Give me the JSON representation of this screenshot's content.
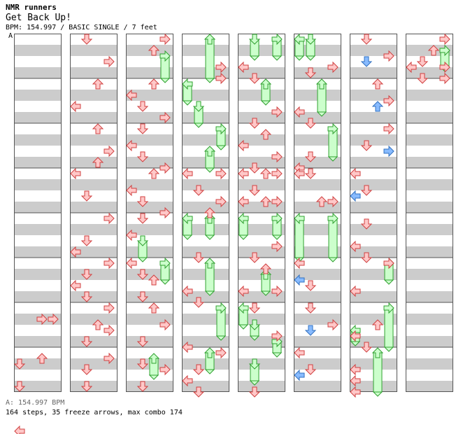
{
  "header": {
    "artist": "NMR runners",
    "title": "Get Back Up!",
    "info": "BPM: 154.997 / BASIC SINGLE / 7 feet",
    "bpm_marker": "A"
  },
  "footer": {
    "bpm_note": "A: 154.997 BPM",
    "stats": "164 steps, 35 freeze arrows, max combo 174"
  },
  "colors": {
    "stripe": "#cccccc",
    "border": "#555555",
    "arrow_fill": "#ffc8c8",
    "arrow_stroke": "#d04040",
    "alt_arrow_fill": "#88bbff",
    "alt_arrow_stroke": "#3070c0",
    "freeze_fill": "#ccffcc",
    "freeze_stroke": "#30a030"
  },
  "chart": {
    "lanes": [
      "left",
      "down",
      "up",
      "right"
    ],
    "columns": [
      {
        "arrows": [
          [
            6,
            2,
            0.5,
            "r"
          ],
          [
            7,
            0,
            0.5,
            "d"
          ],
          [
            6,
            3,
            0.5,
            "r"
          ],
          [
            7,
            2,
            0.25,
            "u"
          ],
          [
            7,
            0,
            1.5,
            "d"
          ],
          [
            7,
            0,
            3.5,
            "l"
          ]
        ],
        "freezes": []
      },
      {
        "arrows": [
          [
            0,
            1,
            0.0,
            "d"
          ],
          [
            0,
            3,
            1.0,
            "r"
          ],
          [
            1,
            2,
            0.0,
            "u"
          ],
          [
            1,
            0,
            1.0,
            "l"
          ],
          [
            2,
            2,
            0.0,
            "u"
          ],
          [
            2,
            3,
            1.0,
            "r"
          ],
          [
            2,
            2,
            1.5,
            "u"
          ],
          [
            3,
            0,
            0.0,
            "l"
          ],
          [
            3,
            1,
            1.0,
            "d"
          ],
          [
            4,
            3,
            0.0,
            "r"
          ],
          [
            4,
            1,
            1.0,
            "d"
          ],
          [
            4,
            0,
            1.5,
            "l"
          ],
          [
            5,
            3,
            0.0,
            "r"
          ],
          [
            5,
            1,
            0.5,
            "d"
          ],
          [
            5,
            0,
            1.0,
            "l"
          ],
          [
            5,
            1,
            1.5,
            "d"
          ],
          [
            6,
            3,
            0.0,
            "r"
          ],
          [
            6,
            2,
            0.75,
            "u"
          ],
          [
            6,
            3,
            1.0,
            "r"
          ],
          [
            6,
            1,
            1.5,
            "d"
          ],
          [
            7,
            3,
            0.25,
            "r"
          ],
          [
            7,
            1,
            0.75,
            "d"
          ],
          [
            7,
            1,
            1.5,
            "d"
          ]
        ],
        "freezes": []
      },
      {
        "arrows": [
          [
            0,
            3,
            0.0,
            "r"
          ],
          [
            0,
            2,
            0.5,
            "u"
          ],
          [
            1,
            2,
            0.0,
            "u"
          ],
          [
            1,
            0,
            0.5,
            "l"
          ],
          [
            1,
            1,
            1.0,
            "d"
          ],
          [
            1,
            3,
            1.5,
            "r"
          ],
          [
            2,
            1,
            0.0,
            "d"
          ],
          [
            2,
            0,
            0.75,
            "l"
          ],
          [
            2,
            1,
            1.25,
            "d"
          ],
          [
            2,
            3,
            1.75,
            "r"
          ],
          [
            3,
            2,
            0.0,
            "u"
          ],
          [
            3,
            0,
            0.75,
            "l"
          ],
          [
            3,
            1,
            1.25,
            "d"
          ],
          [
            3,
            3,
            1.75,
            "r"
          ],
          [
            4,
            1,
            0.0,
            "d"
          ],
          [
            4,
            0,
            0.75,
            "l"
          ],
          [
            5,
            0,
            0.0,
            "l"
          ],
          [
            5,
            1,
            0.5,
            "d"
          ],
          [
            5,
            2,
            0.75,
            "u"
          ],
          [
            5,
            1,
            1.5,
            "d"
          ],
          [
            6,
            2,
            0.0,
            "u"
          ],
          [
            6,
            3,
            0.75,
            "r"
          ],
          [
            6,
            1,
            1.5,
            "d"
          ],
          [
            7,
            1,
            0.5,
            "d"
          ],
          [
            7,
            3,
            0.75,
            "r"
          ],
          [
            7,
            1,
            1.5,
            "d"
          ]
        ],
        "freezes": [
          [
            0,
            3,
            0.75,
            1.75
          ],
          [
            4,
            1,
            1.0,
            1.75
          ],
          [
            5,
            3,
            0.0,
            0.75
          ],
          [
            7,
            2,
            0.25,
            1.0
          ]
        ]
      },
      {
        "arrows": [
          [
            0,
            3,
            1.25,
            "r"
          ],
          [
            0,
            3,
            1.75,
            "r"
          ],
          [
            3,
            0,
            0.0,
            "l"
          ],
          [
            3,
            1,
            0.75,
            "d"
          ],
          [
            3,
            3,
            0.0,
            "r"
          ],
          [
            3,
            3,
            1.25,
            "r"
          ],
          [
            3,
            2,
            1.75,
            "u"
          ],
          [
            4,
            1,
            1.75,
            "d"
          ],
          [
            5,
            0,
            1.25,
            "l"
          ],
          [
            5,
            1,
            1.75,
            "d"
          ],
          [
            6,
            0,
            1.75,
            "l"
          ],
          [
            7,
            3,
            0.0,
            "r"
          ],
          [
            7,
            1,
            0.75,
            "d"
          ],
          [
            7,
            0,
            1.25,
            "l"
          ],
          [
            7,
            1,
            1.75,
            "d"
          ]
        ],
        "freezes": [
          [
            0,
            2,
            0.0,
            1.75
          ],
          [
            1,
            0,
            0.0,
            0.75
          ],
          [
            1,
            1,
            1.0,
            1.75
          ],
          [
            2,
            3,
            0.0,
            0.75
          ],
          [
            2,
            2,
            1.0,
            1.75
          ],
          [
            4,
            0,
            0.0,
            0.75
          ],
          [
            4,
            2,
            0.0,
            0.75
          ],
          [
            5,
            2,
            0.0,
            1.25
          ],
          [
            6,
            3,
            0.0,
            1.25
          ],
          [
            7,
            2,
            0.0,
            0.75
          ]
        ]
      },
      {
        "arrows": [
          [
            0,
            0,
            1.25,
            "l"
          ],
          [
            0,
            1,
            1.75,
            "d"
          ],
          [
            1,
            3,
            1.25,
            "r"
          ],
          [
            1,
            1,
            1.75,
            "d"
          ],
          [
            2,
            2,
            0.25,
            "u"
          ],
          [
            2,
            0,
            0.75,
            "l"
          ],
          [
            2,
            3,
            1.25,
            "r"
          ],
          [
            2,
            1,
            1.75,
            "d"
          ],
          [
            3,
            0,
            0.0,
            "l"
          ],
          [
            3,
            2,
            0.0,
            "u"
          ],
          [
            3,
            3,
            0.0,
            "r"
          ],
          [
            3,
            1,
            0.75,
            "d"
          ],
          [
            3,
            0,
            1.25,
            "l"
          ],
          [
            3,
            2,
            1.25,
            "u"
          ],
          [
            3,
            3,
            1.25,
            "r"
          ],
          [
            4,
            3,
            1.25,
            "r"
          ],
          [
            4,
            1,
            1.75,
            "d"
          ],
          [
            5,
            2,
            0.25,
            "u"
          ],
          [
            5,
            0,
            1.25,
            "l"
          ],
          [
            5,
            3,
            1.25,
            "r"
          ],
          [
            6,
            1,
            0.0,
            "d"
          ],
          [
            6,
            3,
            1.25,
            "r"
          ],
          [
            7,
            1,
            1.75,
            "d"
          ]
        ],
        "freezes": [
          [
            0,
            1,
            0.0,
            0.75
          ],
          [
            0,
            3,
            0.0,
            0.75
          ],
          [
            1,
            2,
            0.0,
            0.75
          ],
          [
            4,
            0,
            0.0,
            0.75
          ],
          [
            4,
            3,
            0.0,
            0.75
          ],
          [
            5,
            2,
            0.5,
            1.25
          ],
          [
            6,
            0,
            0.0,
            0.75
          ],
          [
            6,
            1,
            0.75,
            1.25
          ],
          [
            6,
            3,
            1.5,
            2.0
          ],
          [
            7,
            1,
            0.5,
            1.25
          ]
        ]
      },
      {
        "arrows": [
          [
            0,
            1,
            1.5,
            "d"
          ],
          [
            0,
            3,
            1.25,
            "r"
          ],
          [
            1,
            0,
            1.25,
            "l"
          ],
          [
            1,
            1,
            1.75,
            "d"
          ],
          [
            2,
            1,
            1.25,
            "d"
          ],
          [
            2,
            0,
            1.75,
            "l"
          ],
          [
            3,
            0,
            0.0,
            "l"
          ],
          [
            3,
            1,
            0.0,
            "d"
          ],
          [
            3,
            2,
            1.25,
            "u"
          ],
          [
            3,
            3,
            1.25,
            "r"
          ],
          [
            5,
            0,
            0.0,
            "l"
          ],
          [
            5,
            0,
            0.75,
            "lb"
          ],
          [
            5,
            1,
            1.0,
            "d"
          ],
          [
            6,
            1,
            0.0,
            "d"
          ],
          [
            6,
            3,
            0.75,
            "r"
          ],
          [
            6,
            1,
            1.0,
            "db"
          ],
          [
            7,
            0,
            0.0,
            "l"
          ],
          [
            7,
            1,
            0.75,
            "d"
          ],
          [
            7,
            0,
            1.0,
            "lb"
          ]
        ],
        "freezes": [
          [
            0,
            0,
            0.0,
            0.75
          ],
          [
            0,
            1,
            0.0,
            0.75
          ],
          [
            1,
            2,
            0.0,
            1.25
          ],
          [
            2,
            3,
            0.0,
            1.25
          ],
          [
            4,
            0,
            0.0,
            1.75
          ],
          [
            4,
            3,
            0.0,
            1.75
          ]
        ]
      },
      {
        "arrows": [
          [
            0,
            1,
            0.0,
            "d"
          ],
          [
            0,
            3,
            0.75,
            "r"
          ],
          [
            0,
            1,
            1.0,
            "db"
          ],
          [
            1,
            2,
            0.0,
            "u"
          ],
          [
            1,
            3,
            0.75,
            "r"
          ],
          [
            1,
            2,
            1.0,
            "ub"
          ],
          [
            2,
            3,
            0.0,
            "r"
          ],
          [
            2,
            1,
            0.75,
            "d"
          ],
          [
            2,
            3,
            1.0,
            "rb"
          ],
          [
            3,
            0,
            0.0,
            "l"
          ],
          [
            3,
            1,
            0.75,
            "d"
          ],
          [
            3,
            0,
            1.0,
            "lb"
          ],
          [
            4,
            1,
            0.25,
            "d"
          ],
          [
            4,
            0,
            1.25,
            "l"
          ],
          [
            4,
            1,
            1.75,
            "d"
          ],
          [
            5,
            3,
            0.0,
            "r"
          ],
          [
            5,
            0,
            1.25,
            "l"
          ],
          [
            6,
            2,
            0.75,
            "u"
          ],
          [
            6,
            0,
            1.25,
            "l"
          ],
          [
            6,
            1,
            1.75,
            "d"
          ],
          [
            7,
            0,
            0.75,
            "l"
          ],
          [
            7,
            0,
            1.25,
            "l"
          ],
          [
            7,
            0,
            1.75,
            "l"
          ]
        ],
        "freezes": [
          [
            5,
            3,
            0.0,
            0.75
          ],
          [
            6,
            0,
            1.0,
            1.5
          ],
          [
            6,
            3,
            0.0,
            1.75
          ],
          [
            7,
            2,
            0.0,
            1.75
          ]
        ]
      },
      {
        "arrows": [
          [
            0,
            3,
            0.0,
            "r"
          ],
          [
            0,
            2,
            0.5,
            "u"
          ],
          [
            0,
            1,
            1.0,
            "d"
          ],
          [
            0,
            0,
            1.25,
            "l"
          ],
          [
            0,
            3,
            1.25,
            "r"
          ],
          [
            0,
            1,
            1.75,
            "d"
          ],
          [
            0,
            3,
            1.75,
            "r"
          ]
        ],
        "freezes": [
          [
            0,
            3,
            0.5,
            1.25
          ]
        ]
      }
    ]
  }
}
